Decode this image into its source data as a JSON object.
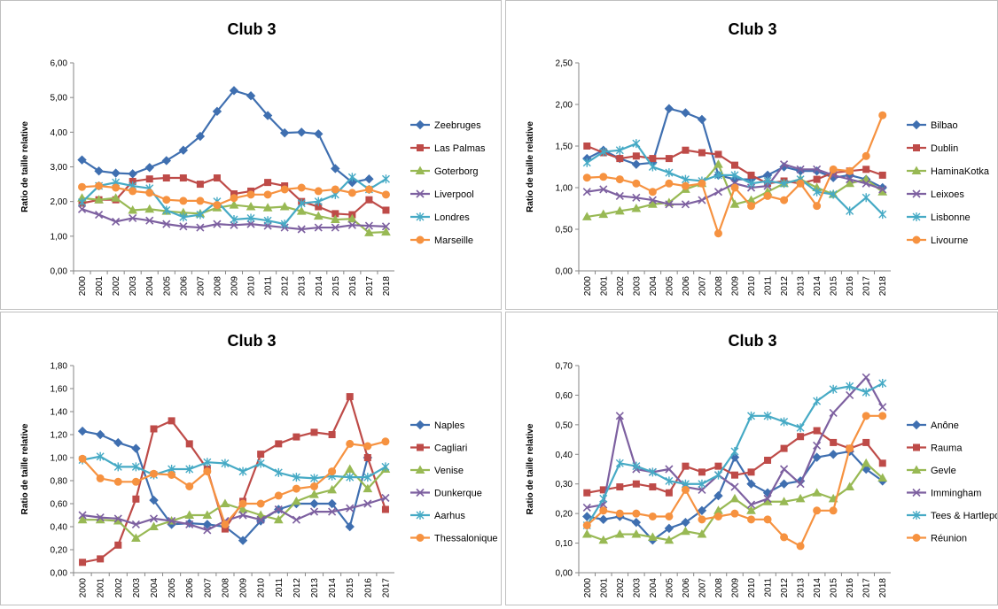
{
  "chart_data": [
    {
      "type": "line",
      "title": "Club 3",
      "y_label": "Ratio de taille relative",
      "categories": [
        "2000",
        "2001",
        "2002",
        "2003",
        "2004",
        "2005",
        "2006",
        "2007",
        "2008",
        "2009",
        "2010",
        "2011",
        "2012",
        "2013",
        "2014",
        "2015",
        "2016",
        "2017",
        "2018"
      ],
      "ylim": [
        0,
        6
      ],
      "yticks": [
        {
          "value": 0,
          "label": "0,00"
        },
        {
          "value": 1,
          "label": "1,00"
        },
        {
          "value": 2,
          "label": "2,00"
        },
        {
          "value": 3,
          "label": "3,00"
        },
        {
          "value": 4,
          "label": "4,00"
        },
        {
          "value": 5,
          "label": "5,00"
        },
        {
          "value": 6,
          "label": "6,00"
        }
      ],
      "legend": "right",
      "series": [
        {
          "name": "Zeebruges",
          "color": "#3f6fb0",
          "values": [
            3.2,
            2.88,
            2.82,
            2.8,
            2.98,
            3.18,
            3.48,
            3.88,
            4.6,
            5.2,
            5.05,
            4.48,
            3.98,
            4.0,
            3.95,
            2.95,
            2.55,
            2.65,
            null
          ]
        },
        {
          "name": "Las Palmas",
          "color": "#be4b48",
          "values": [
            1.95,
            2.05,
            2.05,
            2.58,
            2.65,
            2.68,
            2.68,
            2.5,
            2.68,
            2.22,
            2.3,
            2.55,
            2.45,
            2.0,
            1.85,
            1.65,
            1.62,
            2.05,
            1.75
          ]
        },
        {
          "name": "Goterborg",
          "color": "#98b954",
          "values": [
            2.1,
            2.05,
            2.1,
            1.75,
            1.78,
            1.72,
            1.68,
            1.65,
            1.82,
            1.9,
            1.85,
            1.82,
            1.85,
            1.72,
            1.58,
            1.48,
            1.5,
            1.1,
            1.12
          ]
        },
        {
          "name": "Liverpool",
          "color": "#7d60a0",
          "values": [
            1.78,
            1.62,
            1.42,
            1.52,
            1.45,
            1.35,
            1.28,
            1.25,
            1.35,
            1.32,
            1.35,
            1.3,
            1.25,
            1.2,
            1.25,
            1.25,
            1.32,
            1.3,
            1.28
          ]
        },
        {
          "name": "Londres",
          "color": "#46aac5",
          "values": [
            1.98,
            2.45,
            2.55,
            2.45,
            2.38,
            1.75,
            1.55,
            1.62,
            2.0,
            1.48,
            1.52,
            1.45,
            1.35,
            1.95,
            2.0,
            2.2,
            2.7,
            2.35,
            2.65
          ]
        },
        {
          "name": "Marseille",
          "color": "#f69240",
          "values": [
            2.42,
            2.45,
            2.4,
            2.3,
            2.25,
            2.05,
            2.02,
            2.02,
            1.9,
            2.1,
            2.2,
            2.2,
            2.35,
            2.4,
            2.3,
            2.35,
            2.25,
            2.35,
            2.2
          ]
        }
      ]
    },
    {
      "type": "line",
      "title": "Club 3",
      "y_label": "Ratio de taille relative",
      "categories": [
        "2000",
        "2001",
        "2002",
        "2003",
        "2004",
        "2005",
        "2006",
        "2007",
        "2008",
        "2009",
        "2010",
        "2011",
        "2012",
        "2013",
        "2014",
        "2015",
        "2016",
        "2017",
        "2018"
      ],
      "ylim": [
        0,
        2.5
      ],
      "yticks": [
        {
          "value": 0,
          "label": "0,00"
        },
        {
          "value": 0.5,
          "label": "0,50"
        },
        {
          "value": 1,
          "label": "1,00"
        },
        {
          "value": 1.5,
          "label": "1,50"
        },
        {
          "value": 2,
          "label": "2,00"
        },
        {
          "value": 2.5,
          "label": "2,50"
        }
      ],
      "legend": "right",
      "series": [
        {
          "name": "Bilbao",
          "color": "#3f6fb0",
          "values": [
            1.35,
            1.45,
            1.35,
            1.28,
            1.3,
            1.95,
            1.9,
            1.82,
            1.15,
            1.1,
            1.1,
            1.15,
            1.25,
            1.2,
            1.2,
            1.12,
            1.15,
            1.1,
            1.0
          ]
        },
        {
          "name": "Dublin",
          "color": "#be4b48",
          "values": [
            1.5,
            1.42,
            1.35,
            1.38,
            1.35,
            1.35,
            1.45,
            1.42,
            1.4,
            1.27,
            1.15,
            1.05,
            1.08,
            1.05,
            1.1,
            1.18,
            1.2,
            1.22,
            1.15
          ]
        },
        {
          "name": "HaminaKotka",
          "color": "#98b954",
          "values": [
            0.65,
            0.68,
            0.72,
            0.75,
            0.8,
            0.82,
            0.98,
            1.05,
            1.28,
            0.8,
            0.85,
            0.95,
            1.05,
            1.1,
            1.0,
            0.92,
            1.05,
            1.1,
            0.95
          ]
        },
        {
          "name": "Leixoes",
          "color": "#7d60a0",
          "values": [
            0.95,
            0.98,
            0.9,
            0.88,
            0.85,
            0.8,
            0.8,
            0.85,
            0.95,
            1.05,
            1.0,
            1.02,
            1.28,
            1.22,
            1.22,
            1.15,
            1.1,
            1.05,
            0.98
          ]
        },
        {
          "name": "Lisbonne",
          "color": "#46aac5",
          "values": [
            1.3,
            1.43,
            1.45,
            1.53,
            1.25,
            1.18,
            1.1,
            1.08,
            1.15,
            1.15,
            1.05,
            1.08,
            1.05,
            1.1,
            0.95,
            0.92,
            0.72,
            0.88,
            0.68
          ]
        },
        {
          "name": "Livourne",
          "color": "#f69240",
          "values": [
            1.12,
            1.13,
            1.1,
            1.05,
            0.95,
            1.05,
            1.02,
            1.05,
            0.45,
            1.0,
            0.78,
            0.9,
            0.85,
            1.05,
            0.78,
            1.22,
            1.2,
            1.38,
            1.87
          ]
        }
      ]
    },
    {
      "type": "line",
      "title": "Club 3",
      "y_label": "Ratio de taille relative",
      "categories": [
        "2000",
        "2001",
        "2002",
        "2003",
        "2004",
        "2005",
        "2006",
        "2007",
        "2008",
        "2009",
        "2010",
        "2011",
        "2012",
        "2013",
        "2014",
        "2015",
        "2016",
        "2017"
      ],
      "ylim": [
        0,
        1.8
      ],
      "yticks": [
        {
          "value": 0,
          "label": "0,00"
        },
        {
          "value": 0.2,
          "label": "0,20"
        },
        {
          "value": 0.4,
          "label": "0,40"
        },
        {
          "value": 0.6,
          "label": "0,60"
        },
        {
          "value": 0.8,
          "label": "0,80"
        },
        {
          "value": 1,
          "label": "1,00"
        },
        {
          "value": 1.2,
          "label": "1,20"
        },
        {
          "value": 1.4,
          "label": "1,40"
        },
        {
          "value": 1.6,
          "label": "1,60"
        },
        {
          "value": 1.8,
          "label": "1,80"
        }
      ],
      "legend": "right",
      "series": [
        {
          "name": "Naples",
          "color": "#3f6fb0",
          "values": [
            1.23,
            1.2,
            1.13,
            1.08,
            0.63,
            0.42,
            0.43,
            0.42,
            0.4,
            0.28,
            0.45,
            0.55,
            0.6,
            0.6,
            0.6,
            0.4,
            1.0,
            null
          ]
        },
        {
          "name": "Cagliari",
          "color": "#be4b48",
          "values": [
            0.09,
            0.12,
            0.24,
            0.64,
            1.25,
            1.32,
            1.12,
            0.9,
            0.38,
            0.62,
            1.03,
            1.12,
            1.18,
            1.22,
            1.2,
            1.53,
            1.0,
            0.55
          ]
        },
        {
          "name": "Venise",
          "color": "#98b954",
          "values": [
            0.46,
            0.46,
            0.45,
            0.3,
            0.4,
            0.45,
            0.5,
            0.5,
            0.6,
            0.55,
            0.5,
            0.46,
            0.62,
            0.68,
            0.72,
            0.9,
            0.73,
            0.9
          ]
        },
        {
          "name": "Dunkerque",
          "color": "#7d60a0",
          "values": [
            0.5,
            0.48,
            0.47,
            0.42,
            0.47,
            0.45,
            0.42,
            0.37,
            0.45,
            0.5,
            0.46,
            0.55,
            0.46,
            0.53,
            0.53,
            0.56,
            0.6,
            0.65
          ]
        },
        {
          "name": "Aarhus",
          "color": "#46aac5",
          "values": [
            0.98,
            1.01,
            0.92,
            0.92,
            0.85,
            0.9,
            0.9,
            0.96,
            0.95,
            0.88,
            0.95,
            0.87,
            0.83,
            0.82,
            0.84,
            0.83,
            0.83,
            0.92
          ]
        },
        {
          "name": "Thessalonique",
          "color": "#f69240",
          "values": [
            0.99,
            0.82,
            0.79,
            0.79,
            0.86,
            0.85,
            0.75,
            0.88,
            0.42,
            0.6,
            0.6,
            0.67,
            0.73,
            0.75,
            0.88,
            1.12,
            1.1,
            1.14
          ]
        }
      ]
    },
    {
      "type": "line",
      "title": "Club 3",
      "y_label": "Ratio de taille relative",
      "categories": [
        "2000",
        "2001",
        "2002",
        "2003",
        "2004",
        "2005",
        "2006",
        "2007",
        "2008",
        "2009",
        "2010",
        "2011",
        "2012",
        "2013",
        "2014",
        "2015",
        "2016",
        "2017",
        "2018"
      ],
      "ylim": [
        0,
        0.7
      ],
      "yticks": [
        {
          "value": 0,
          "label": "0,00"
        },
        {
          "value": 0.1,
          "label": "0,10"
        },
        {
          "value": 0.2,
          "label": "0,20"
        },
        {
          "value": 0.3,
          "label": "0,30"
        },
        {
          "value": 0.4,
          "label": "0,40"
        },
        {
          "value": 0.5,
          "label": "0,50"
        },
        {
          "value": 0.6,
          "label": "0,60"
        },
        {
          "value": 0.7,
          "label": "0,70"
        }
      ],
      "legend": "right",
      "series": [
        {
          "name": "Anône",
          "color": "#3f6fb0",
          "values": [
            0.19,
            0.18,
            0.19,
            0.17,
            0.11,
            0.15,
            0.17,
            0.21,
            0.26,
            0.39,
            0.3,
            0.27,
            0.3,
            0.31,
            0.39,
            0.4,
            0.41,
            0.35,
            0.31
          ]
        },
        {
          "name": "Rauma",
          "color": "#be4b48",
          "values": [
            0.27,
            0.28,
            0.29,
            0.3,
            0.29,
            0.27,
            0.36,
            0.34,
            0.36,
            0.33,
            0.34,
            0.38,
            0.42,
            0.46,
            0.48,
            0.44,
            0.42,
            0.44,
            0.37
          ]
        },
        {
          "name": "Gevle",
          "color": "#98b954",
          "values": [
            0.13,
            0.11,
            0.13,
            0.13,
            0.12,
            0.11,
            0.14,
            0.13,
            0.21,
            0.25,
            0.21,
            0.24,
            0.24,
            0.25,
            0.27,
            0.25,
            0.29,
            0.37,
            0.32
          ]
        },
        {
          "name": "Immingham",
          "color": "#7d60a0",
          "values": [
            0.22,
            0.23,
            0.53,
            0.35,
            0.34,
            0.35,
            0.29,
            0.28,
            0.33,
            0.29,
            0.23,
            0.25,
            0.35,
            0.3,
            0.43,
            0.54,
            0.6,
            0.66,
            0.56
          ]
        },
        {
          "name": "Tees & Hartlepool",
          "color": "#46aac5",
          "values": [
            0.16,
            0.25,
            0.37,
            0.36,
            0.34,
            0.31,
            0.3,
            0.3,
            0.33,
            0.41,
            0.53,
            0.53,
            0.51,
            0.49,
            0.58,
            0.62,
            0.63,
            0.61,
            0.64
          ]
        },
        {
          "name": "Réunion",
          "color": "#f69240",
          "values": [
            0.16,
            0.21,
            0.2,
            0.2,
            0.19,
            0.19,
            0.28,
            0.18,
            0.19,
            0.2,
            0.18,
            0.18,
            0.12,
            0.09,
            0.21,
            0.21,
            0.42,
            0.53,
            0.53
          ]
        }
      ]
    }
  ]
}
